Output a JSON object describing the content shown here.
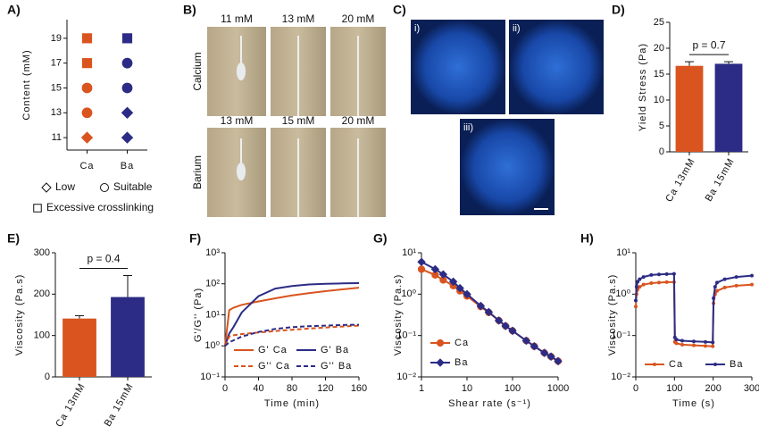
{
  "chart_data": [
    {
      "type": "scatter",
      "label": "A)",
      "ylabel": "Content (mM)",
      "categories": [
        "Ca",
        "Ba"
      ],
      "category_colors": [
        "#d9541e",
        "#2c2c86"
      ],
      "ylim": [
        10,
        20.5
      ],
      "yticks": [
        11,
        13,
        15,
        17,
        19
      ],
      "series": [
        {
          "name": "Low",
          "marker": "diamond",
          "x": [
            "Ca",
            "Ba",
            "Ba"
          ],
          "values": [
            11,
            11,
            13
          ]
        },
        {
          "name": "Suitable",
          "marker": "circle",
          "x": [
            "Ca",
            "Ca",
            "Ba",
            "Ba"
          ],
          "values": [
            13,
            15,
            15,
            17
          ]
        },
        {
          "name": "Excessive crosslinking",
          "marker": "square",
          "x": [
            "Ca",
            "Ca",
            "Ba"
          ],
          "values": [
            17,
            19,
            19
          ]
        }
      ]
    },
    {
      "type": "bar",
      "label": "D)",
      "ylabel": "Yield Stress (Pa)",
      "categories": [
        "Ca 13mM",
        "Ba 15mM"
      ],
      "values": [
        16.6,
        17.0
      ],
      "errors": [
        0.8,
        0.4
      ],
      "colors": [
        "#d9541e",
        "#2c2c86"
      ],
      "ylim": [
        0,
        25
      ],
      "yticks": [
        0,
        5,
        10,
        15,
        20,
        25
      ],
      "annotation": "p = 0.7"
    },
    {
      "type": "bar",
      "label": "E)",
      "ylabel": "Viscosity (Pa.s)",
      "categories": [
        "Ca 13mM",
        "Ba 15mM"
      ],
      "values": [
        141,
        193
      ],
      "errors": [
        7,
        52
      ],
      "colors": [
        "#d9541e",
        "#2c2c86"
      ],
      "ylim": [
        0,
        300
      ],
      "yticks": [
        0,
        100,
        200,
        300
      ],
      "annotation": "p = 0.4"
    },
    {
      "type": "line",
      "label": "F)",
      "ylabel": "G'/G'' (Pa)",
      "xlabel": "Time (min)",
      "yscale": "log",
      "ylim": [
        0.1,
        1000
      ],
      "yticks": [
        {
          "value": 0.1,
          "label": "10⁻¹"
        },
        {
          "value": 1,
          "label": "10⁰"
        },
        {
          "value": 10,
          "label": "10¹"
        },
        {
          "value": 100,
          "label": "10²"
        },
        {
          "value": 1000,
          "label": "10³"
        }
      ],
      "xlim": [
        0,
        160
      ],
      "xticks": [
        0,
        40,
        80,
        120,
        160
      ],
      "x": [
        0,
        5,
        10,
        20,
        40,
        60,
        80,
        100,
        120,
        140,
        160
      ],
      "series": [
        {
          "name": "G' Ca",
          "color": "#d9541e",
          "dash": false,
          "values": [
            1,
            14,
            17,
            21,
            27,
            34,
            42,
            50,
            58,
            66,
            75
          ]
        },
        {
          "name": "G' Ba",
          "color": "#2c2c86",
          "dash": false,
          "values": [
            1,
            2.5,
            4,
            12,
            40,
            70,
            85,
            95,
            100,
            103,
            105
          ]
        },
        {
          "name": "G'' Ca",
          "color": "#d9541e",
          "dash": true,
          "values": [
            1,
            2,
            2.2,
            2.4,
            2.7,
            3.0,
            3.3,
            3.6,
            3.9,
            4.2,
            4.5
          ]
        },
        {
          "name": "G'' Ba",
          "color": "#2c2c86",
          "dash": true,
          "values": [
            1,
            1.3,
            1.5,
            2,
            2.8,
            3.5,
            4,
            4.3,
            4.5,
            4.7,
            4.8
          ]
        }
      ]
    },
    {
      "type": "line",
      "label": "G)",
      "ylabel": "Viscosity (Pa.s)",
      "xlabel": "Shear rate (s⁻¹)",
      "yscale": "log",
      "xscale": "log",
      "ylim": [
        0.01,
        10
      ],
      "yticks": [
        {
          "value": 0.01,
          "label": "10⁻²"
        },
        {
          "value": 0.1,
          "label": "10⁻¹"
        },
        {
          "value": 1,
          "label": "10⁰"
        },
        {
          "value": 10,
          "label": "10¹"
        }
      ],
      "xlim": [
        1,
        1000
      ],
      "xticks": [
        1,
        10,
        100,
        1000
      ],
      "x": [
        1,
        2,
        3,
        5,
        7,
        10,
        20,
        30,
        50,
        70,
        100,
        200,
        300,
        500,
        700,
        1000
      ],
      "series": [
        {
          "name": "Ca",
          "color": "#d9541e",
          "marker": "circle",
          "values": [
            4.0,
            2.9,
            2.2,
            1.6,
            1.2,
            0.9,
            0.5,
            0.36,
            0.23,
            0.17,
            0.13,
            0.075,
            0.055,
            0.038,
            0.031,
            0.024
          ]
        },
        {
          "name": "Ba",
          "color": "#2c2c86",
          "marker": "diamond",
          "values": [
            6.0,
            4.0,
            3.0,
            2.0,
            1.4,
            1.0,
            0.52,
            0.37,
            0.23,
            0.17,
            0.13,
            0.075,
            0.055,
            0.038,
            0.031,
            0.024
          ]
        }
      ]
    },
    {
      "type": "line",
      "label": "H)",
      "ylabel": "Viscosity (Pa.s)",
      "xlabel": "Time (s)",
      "yscale": "log",
      "ylim": [
        0.01,
        10
      ],
      "yticks": [
        {
          "value": 0.01,
          "label": "10⁻²"
        },
        {
          "value": 0.1,
          "label": "10⁻¹"
        },
        {
          "value": 1,
          "label": "10⁰"
        },
        {
          "value": 10,
          "label": "10¹"
        }
      ],
      "xlim": [
        0,
        300
      ],
      "xticks": [
        0,
        100,
        200,
        300
      ],
      "x": [
        0,
        2,
        5,
        10,
        20,
        40,
        60,
        80,
        99,
        101,
        105,
        120,
        150,
        180,
        199,
        201,
        205,
        210,
        230,
        260,
        300
      ],
      "series": [
        {
          "name": "Ca",
          "color": "#d9541e",
          "marker": "dot",
          "values": [
            0.5,
            1.0,
            1.3,
            1.5,
            1.7,
            1.85,
            1.9,
            1.95,
            1.95,
            0.07,
            0.065,
            0.06,
            0.058,
            0.056,
            0.055,
            0.6,
            1.0,
            1.2,
            1.45,
            1.6,
            1.7
          ]
        },
        {
          "name": "Ba",
          "color": "#2c2c86",
          "marker": "dot",
          "values": [
            0.7,
            1.5,
            2.0,
            2.3,
            2.6,
            2.9,
            3.0,
            3.05,
            3.1,
            0.09,
            0.08,
            0.075,
            0.072,
            0.07,
            0.068,
            0.8,
            1.5,
            1.9,
            2.3,
            2.6,
            2.8
          ]
        }
      ]
    }
  ],
  "panel_b": {
    "label": "B)",
    "row_labels": [
      "Calcium",
      "Barium"
    ],
    "captions": [
      [
        "11 mM",
        "13 mM",
        "20 mM"
      ],
      [
        "13 mM",
        "15 mM",
        "20 mM"
      ]
    ]
  },
  "panel_c": {
    "label": "C)",
    "captions": [
      "i)",
      "ii)",
      "iii)"
    ]
  }
}
